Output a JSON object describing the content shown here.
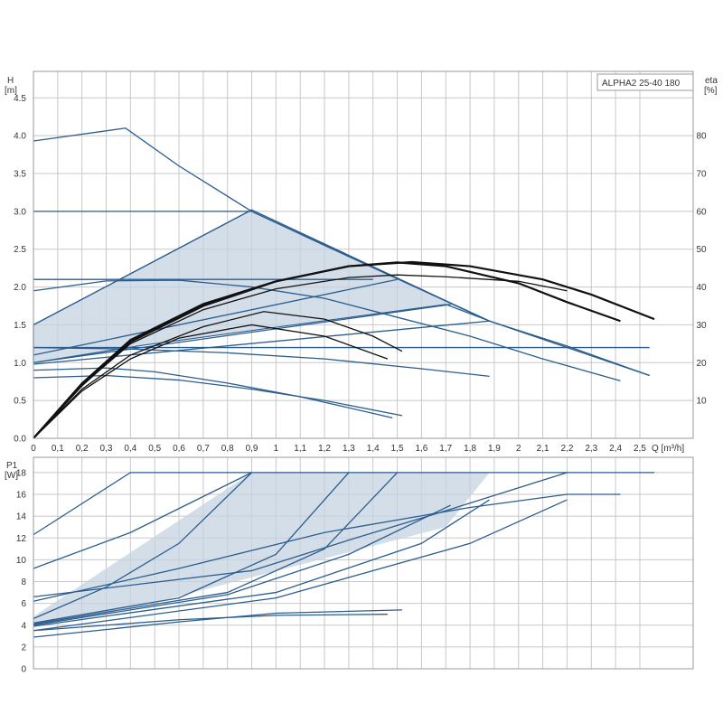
{
  "chart_data": [
    {
      "type": "line",
      "title": "ALPHA2 25-40 180",
      "y_label": "H",
      "y_unit": "[m]",
      "y2_label": "eta",
      "y2_unit": "[%]",
      "x_label": "Q [m³/h]",
      "xlim": [
        0,
        2.72
      ],
      "ylim": [
        0,
        4.85
      ],
      "y2lim": [
        0,
        97
      ],
      "grid": true,
      "x_ticks": [
        "0",
        "0,1",
        "0,2",
        "0,3",
        "0,4",
        "0,5",
        "0,6",
        "0,7",
        "0,8",
        "0,9",
        "1",
        "1,1",
        "1,2",
        "1,3",
        "1,4",
        "1,5",
        "1,6",
        "1,7",
        "1,8",
        "1,9",
        "2",
        "2,1",
        "2,2",
        "2,3",
        "2,4",
        "2,5"
      ],
      "y_ticks": [
        "0.0",
        "0.5",
        "1.0",
        "1.5",
        "2.0",
        "2.5",
        "3.0",
        "3.5",
        "4.0",
        "4.5"
      ],
      "y2_ticks": [
        "10",
        "20",
        "30",
        "40",
        "50",
        "60",
        "70",
        "80"
      ],
      "colors": {
        "curve": "#2b5d8e",
        "eta": "#111111",
        "fill": "#c5d3e2",
        "grid": "#c8c8c8"
      },
      "shaded_area": {
        "x": [
          0,
          0.9,
          1.88,
          1.7,
          0.45,
          0
        ],
        "y": [
          1.5,
          3.02,
          1.55,
          1.77,
          1.23,
          1.0
        ]
      },
      "series": [
        {
          "x": [
            0,
            0.38,
            0.6,
            0.9,
            1.2,
            1.88,
            2.2,
            2.54
          ],
          "y": [
            3.93,
            4.1,
            3.6,
            3.0,
            2.55,
            1.55,
            1.2,
            0.83
          ]
        },
        {
          "x": [
            0,
            0.9,
            1.88,
            2.2,
            2.54
          ],
          "y": [
            3.0,
            3.0,
            1.55,
            1.22,
            0.83
          ]
        },
        {
          "x": [
            0,
            0.9
          ],
          "y": [
            1.5,
            3.02
          ]
        },
        {
          "x": [
            0,
            1.4
          ],
          "y": [
            2.1,
            2.1
          ]
        },
        {
          "x": [
            0,
            0.3,
            0.6,
            0.9,
            1.2,
            1.5,
            1.8,
            2.1,
            2.42
          ],
          "y": [
            1.95,
            2.08,
            2.09,
            2.0,
            1.85,
            1.6,
            1.35,
            1.05,
            0.76
          ]
        },
        {
          "x": [
            0,
            1.5
          ],
          "y": [
            1.1,
            2.1
          ]
        },
        {
          "x": [
            0,
            1.72
          ],
          "y": [
            1.0,
            1.77
          ]
        },
        {
          "x": [
            0,
            1.88
          ],
          "y": [
            0.98,
            1.55
          ]
        },
        {
          "x": [
            0,
            2.54
          ],
          "y": [
            1.2,
            1.2
          ]
        },
        {
          "x": [
            0,
            0.4,
            0.8,
            1.2,
            1.6,
            1.88
          ],
          "y": [
            1.2,
            1.18,
            1.13,
            1.05,
            0.92,
            0.82
          ]
        },
        {
          "x": [
            0,
            0.3,
            0.6,
            0.9,
            1.2,
            1.52
          ],
          "y": [
            0.8,
            0.83,
            0.77,
            0.65,
            0.5,
            0.3
          ]
        },
        {
          "x": [
            0,
            0.3,
            0.5,
            0.8,
            1.1,
            1.4,
            1.48
          ],
          "y": [
            0.9,
            0.93,
            0.88,
            0.73,
            0.55,
            0.33,
            0.27
          ]
        }
      ],
      "eta_series": [
        {
          "x": [
            0,
            0.2,
            0.4,
            0.7,
            1.0,
            1.3,
            1.56,
            1.8,
            2.1,
            2.3,
            2.56
          ],
          "y2": [
            0,
            14.5,
            26,
            35.5,
            41.5,
            45.5,
            46.6,
            45.5,
            42,
            38,
            31.5
          ]
        },
        {
          "x": [
            0,
            0.2,
            0.4,
            0.7,
            1.0,
            1.3,
            1.5,
            1.7,
            2.0,
            2.2,
            2.42
          ],
          "y2": [
            0,
            14,
            25.5,
            35,
            41.5,
            45.5,
            46.5,
            45.5,
            41,
            36,
            31
          ]
        },
        {
          "x": [
            0,
            0.2,
            0.4,
            0.7,
            1.0,
            1.3,
            1.5,
            1.7,
            2.0,
            2.2
          ],
          "y2": [
            0,
            14,
            25,
            34,
            39.5,
            42.5,
            43.2,
            42.7,
            41.5,
            39
          ]
        },
        {
          "x": [
            0,
            0.2,
            0.4,
            0.7,
            0.95,
            1.2,
            1.4,
            1.52
          ],
          "y2": [
            0,
            13,
            22,
            29.5,
            33.5,
            31.5,
            27,
            23
          ]
        },
        {
          "x": [
            0,
            0.2,
            0.4,
            0.6,
            0.9,
            1.2,
            1.46
          ],
          "y2": [
            0,
            12.5,
            21,
            26.5,
            30,
            27,
            21
          ]
        }
      ]
    },
    {
      "type": "line",
      "y_label": "P1",
      "y_unit": "[W]",
      "xlim": [
        0,
        2.72
      ],
      "ylim": [
        0,
        19.4
      ],
      "grid": true,
      "y_ticks": [
        "0",
        "2",
        "4",
        "6",
        "8",
        "10",
        "12",
        "14",
        "16",
        "18"
      ],
      "shaded_area": {
        "x": [
          0,
          0.9,
          1.88,
          1.7,
          0.45,
          0
        ],
        "y": [
          4.8,
          18,
          18,
          13,
          5.8,
          4.0
        ]
      },
      "series": [
        {
          "x": [
            0,
            0.4,
            2.56
          ],
          "y": [
            12.3,
            18,
            18
          ]
        },
        {
          "x": [
            0,
            0.4,
            0.9
          ],
          "y": [
            9.2,
            12.5,
            18
          ]
        },
        {
          "x": [
            0,
            0.9,
            1.3,
            1.7,
            2.2
          ],
          "y": [
            6.6,
            9,
            11.8,
            14.5,
            18
          ]
        },
        {
          "x": [
            0,
            0.3,
            0.6,
            0.9
          ],
          "y": [
            4.6,
            7.5,
            11.5,
            18
          ]
        },
        {
          "x": [
            0,
            0.6,
            1.0,
            1.3
          ],
          "y": [
            4.2,
            6.5,
            10.5,
            18
          ]
        },
        {
          "x": [
            0,
            0.8,
            1.2,
            1.5
          ],
          "y": [
            4.1,
            7.0,
            11.0,
            18
          ]
        },
        {
          "x": [
            0,
            0.8,
            1.3,
            1.72
          ],
          "y": [
            4.0,
            6.8,
            10.5,
            15.0
          ]
        },
        {
          "x": [
            0,
            1.0,
            1.6,
            1.88
          ],
          "y": [
            3.9,
            7.0,
            11.5,
            15.5
          ]
        },
        {
          "x": [
            0,
            1.0,
            1.8,
            2.2
          ],
          "y": [
            3.5,
            6.5,
            11.5,
            15.5
          ]
        },
        {
          "x": [
            0,
            0.6,
            1.2,
            1.8,
            2.2,
            2.42
          ],
          "y": [
            6.2,
            9.2,
            12.5,
            14.8,
            16,
            16
          ]
        },
        {
          "x": [
            0,
            0.6,
            1.0,
            1.52
          ],
          "y": [
            2.9,
            4.3,
            5.1,
            5.4
          ]
        },
        {
          "x": [
            0,
            0.6,
            1.0,
            1.46
          ],
          "y": [
            3.5,
            4.5,
            4.9,
            5.0
          ]
        }
      ]
    }
  ]
}
